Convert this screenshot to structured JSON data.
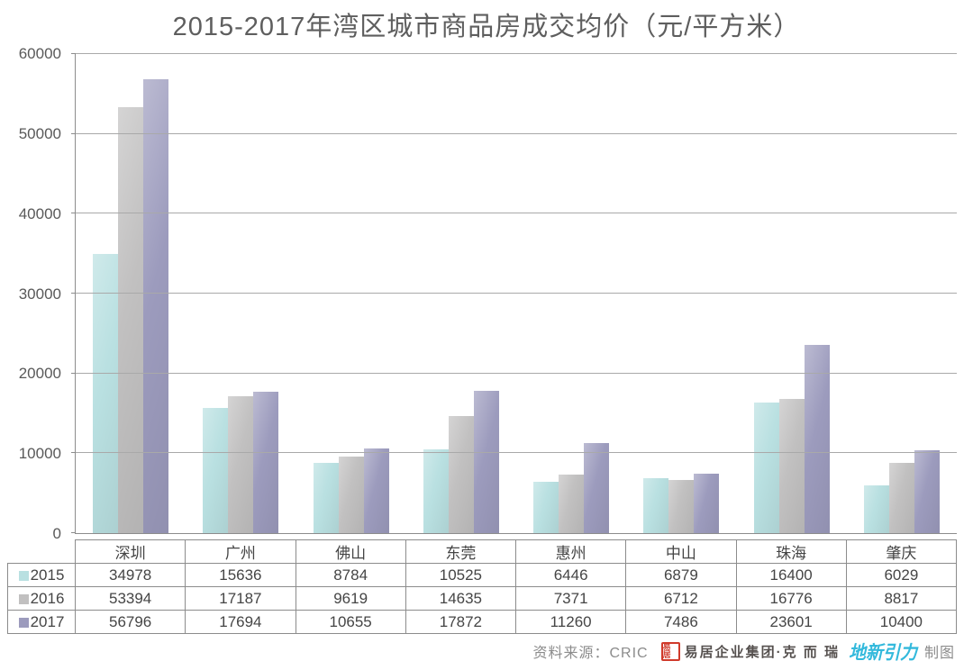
{
  "title": "2015-2017年湾区城市商品房成交均价（元/平方米）",
  "chart_data": {
    "type": "bar",
    "title": "2015-2017年湾区城市商品房成交均价（元/平方米）",
    "categories": [
      "深圳",
      "广州",
      "佛山",
      "东莞",
      "惠州",
      "中山",
      "珠海",
      "肇庆"
    ],
    "series": [
      {
        "name": "2015",
        "color": "#b9e0e1",
        "values": [
          34978,
          15636,
          8784,
          10525,
          6446,
          6879,
          16400,
          6029
        ]
      },
      {
        "name": "2016",
        "color": "#c1c0c0",
        "values": [
          53394,
          17187,
          9619,
          14635,
          7371,
          6712,
          16776,
          8817
        ]
      },
      {
        "name": "2017",
        "color": "#9c9bbd",
        "values": [
          56796,
          17694,
          10655,
          17872,
          11260,
          7486,
          23601,
          10400
        ]
      }
    ],
    "ylabel": "",
    "xlabel": "",
    "ylim": [
      0,
      60000
    ],
    "ytick_step": 10000,
    "ytick_labels": [
      "0",
      "10000",
      "20000",
      "30000",
      "40000",
      "50000",
      "60000"
    ],
    "grid": "horizontal",
    "legend_position": "table-left-column"
  },
  "footer": {
    "source_label": "资料来源：CRIC",
    "seal_text": "易居",
    "seal_color": "#d03a2b",
    "company_text": "易居企业集团·克 而 瑞",
    "company_color": "#55504e",
    "logo_text": "地新引力",
    "logo_color": "#33b9dc",
    "credit_label": "制图",
    "text_color": "#8c8c8c"
  }
}
